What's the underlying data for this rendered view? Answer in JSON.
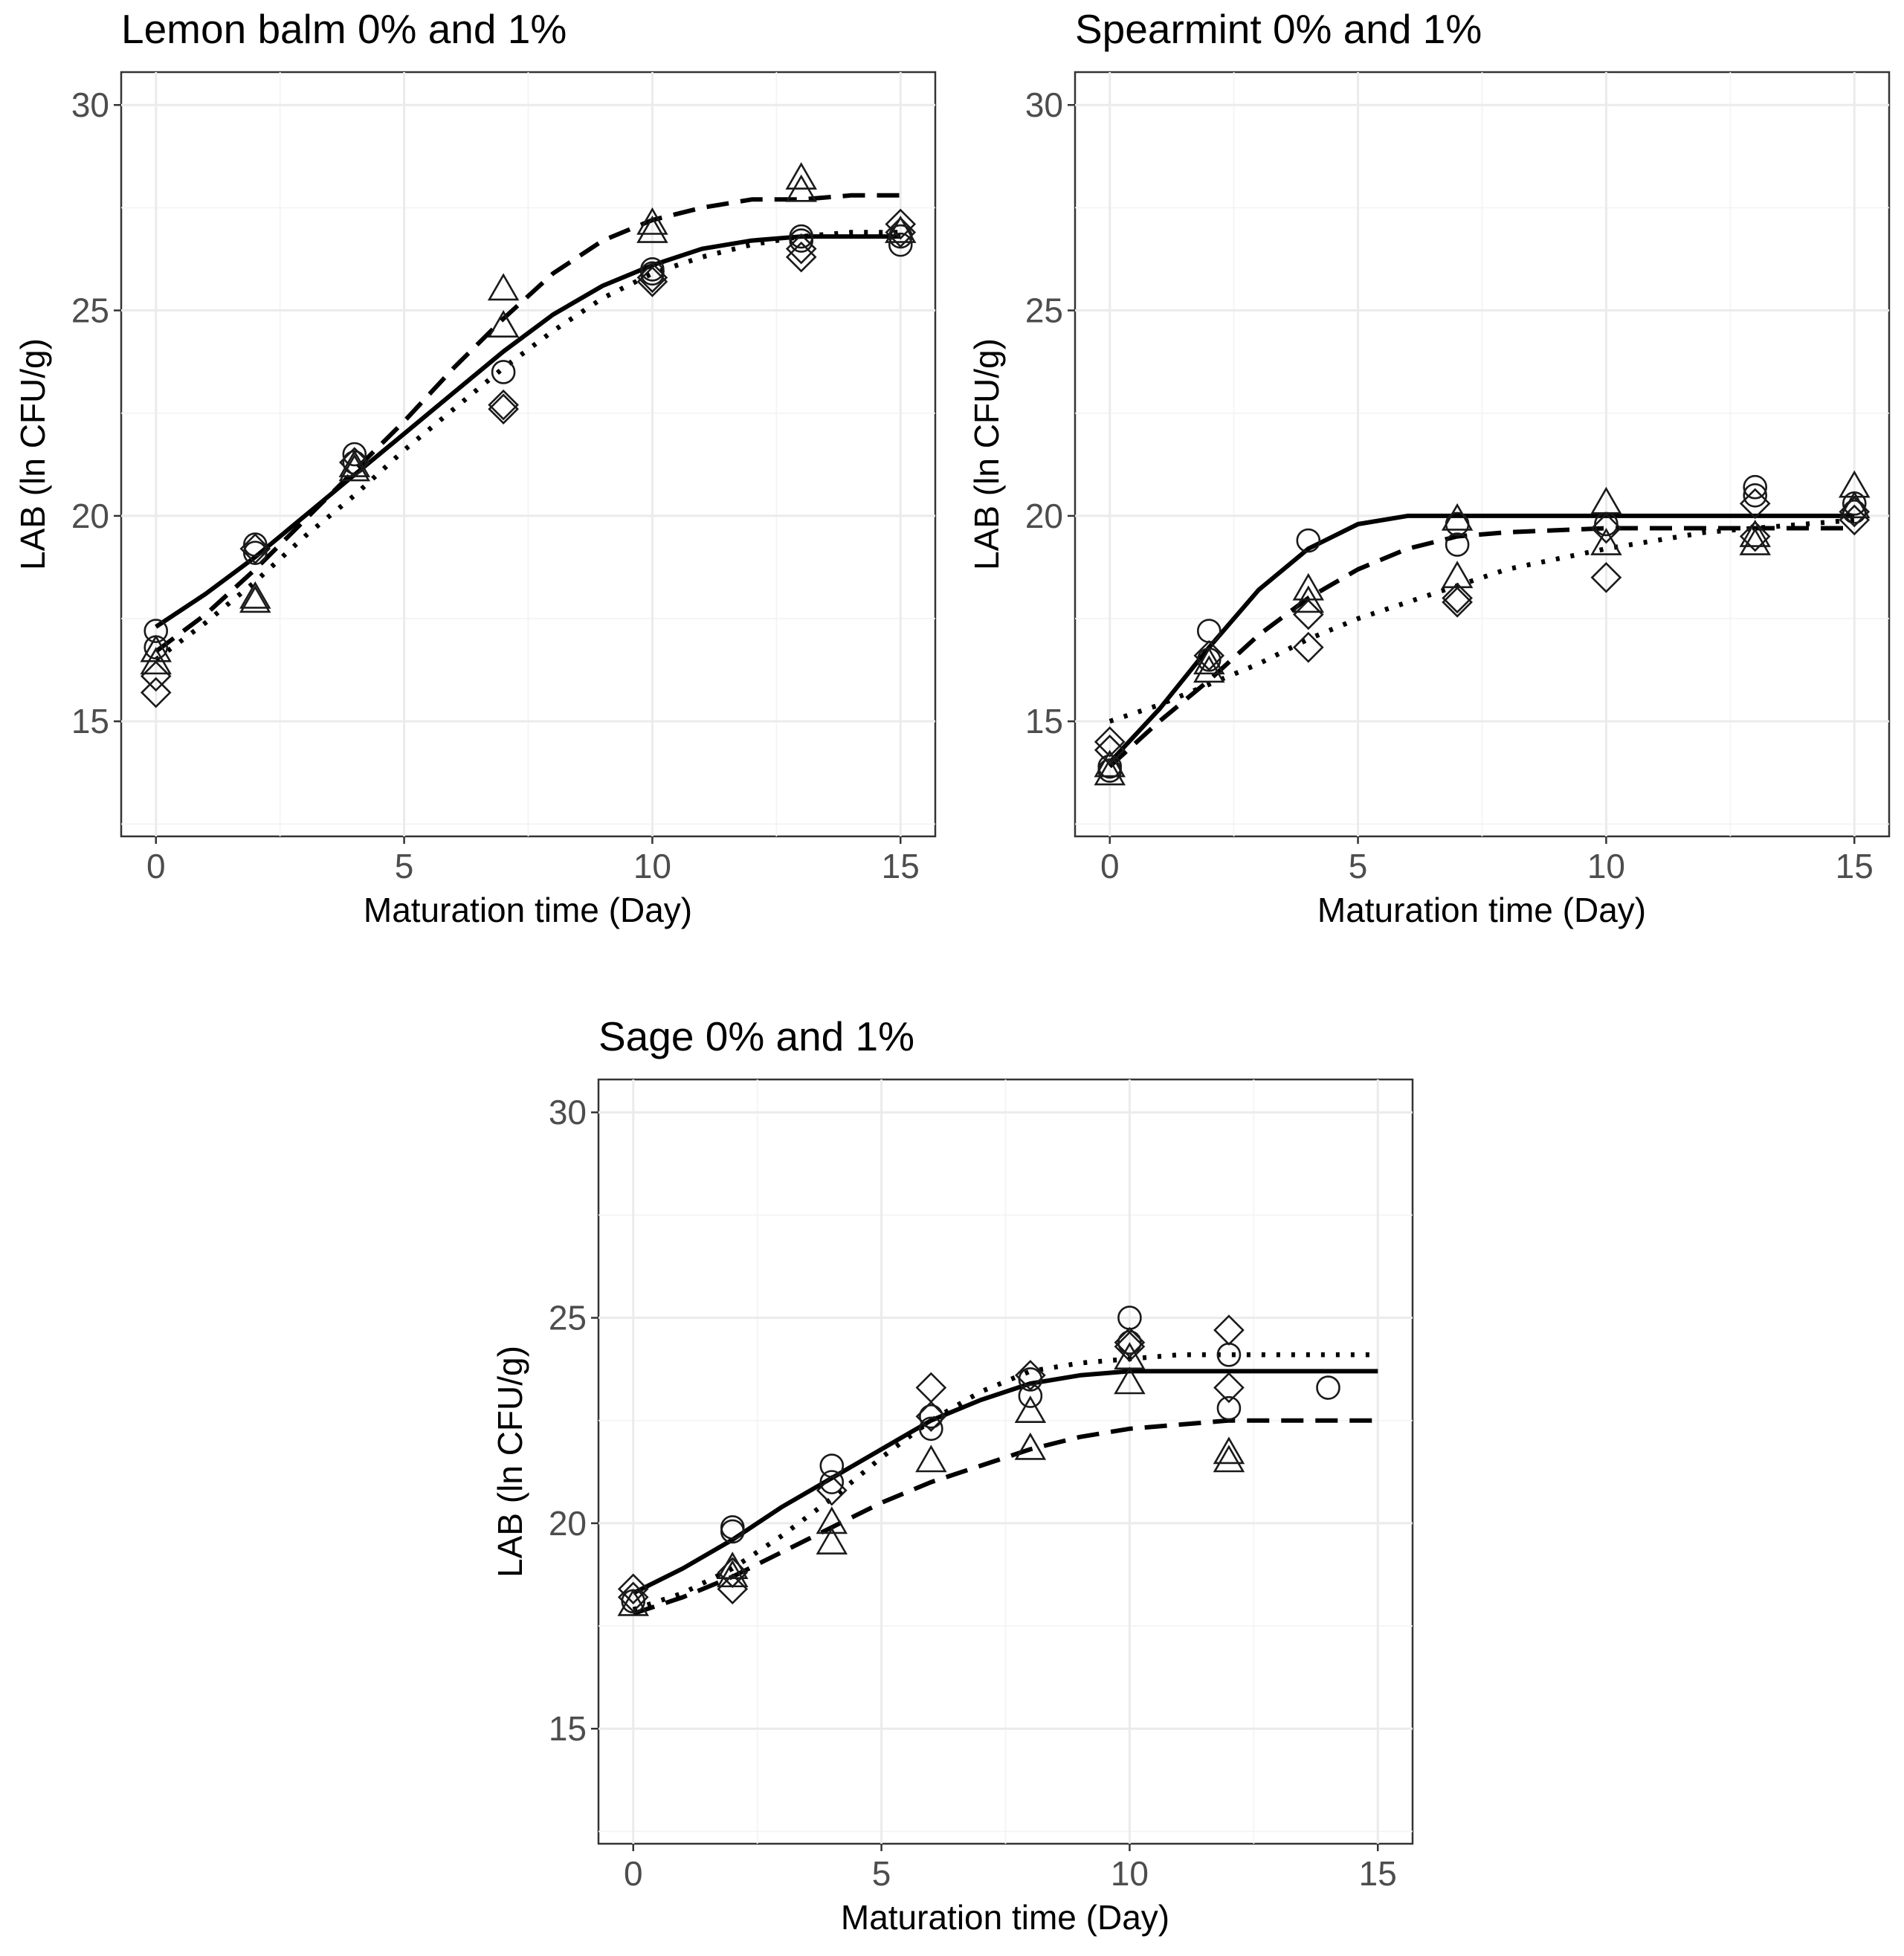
{
  "styles": {
    "line": "#000000",
    "grid": "#ebebeb",
    "border": "#333333",
    "tick_text": "#4d4d4d"
  },
  "chart_data": [
    {
      "type": "scatter",
      "title": "Lemon balm 0% and 1%",
      "xlabel": "Maturation time (Day)",
      "ylabel": "LAB (ln CFU/g)",
      "xlim": [
        -0.7,
        15.7
      ],
      "ylim": [
        12.2,
        30.8
      ],
      "xticks": [
        "0",
        "5",
        "10",
        "15"
      ],
      "yticks": [
        "15",
        "20",
        "25",
        "30"
      ],
      "xtick_values": [
        0,
        5,
        10,
        15
      ],
      "ytick_values": [
        15,
        20,
        25,
        30
      ],
      "series": [
        {
          "name": "circle",
          "marker": "circle",
          "points": [
            [
              0,
              17.2
            ],
            [
              0,
              16.8
            ],
            [
              2,
              19.3
            ],
            [
              2,
              19.1
            ],
            [
              4,
              21.5
            ],
            [
              4,
              21.3
            ],
            [
              7,
              23.5
            ],
            [
              10,
              26.0
            ],
            [
              10,
              25.9
            ],
            [
              13,
              26.8
            ],
            [
              13,
              26.7
            ],
            [
              15,
              26.8
            ],
            [
              15,
              26.6
            ]
          ]
        },
        {
          "name": "triangle",
          "marker": "triangle",
          "points": [
            [
              0,
              16.7
            ],
            [
              0,
              16.4
            ],
            [
              2,
              18.0
            ],
            [
              2,
              17.9
            ],
            [
              4,
              21.1
            ],
            [
              4,
              21.2
            ],
            [
              7,
              25.5
            ],
            [
              7,
              24.6
            ],
            [
              10,
              27.1
            ],
            [
              10,
              26.9
            ],
            [
              13,
              28.2
            ],
            [
              13,
              27.9
            ],
            [
              15,
              26.9
            ]
          ]
        },
        {
          "name": "diamond",
          "marker": "diamond",
          "points": [
            [
              0,
              16.1
            ],
            [
              0,
              15.7
            ],
            [
              2,
              19.2
            ],
            [
              4,
              21.3
            ],
            [
              7,
              22.7
            ],
            [
              7,
              22.6
            ],
            [
              10,
              25.8
            ],
            [
              10,
              25.7
            ],
            [
              13,
              26.5
            ],
            [
              13,
              26.3
            ],
            [
              15,
              27.1
            ],
            [
              15,
              26.9
            ]
          ]
        }
      ],
      "fits": [
        {
          "name": "solid",
          "dash": "solid",
          "x": [
            0,
            1,
            2,
            3,
            4,
            5,
            6,
            7,
            8,
            9,
            10,
            11,
            12,
            13,
            14,
            15
          ],
          "y": [
            17.3,
            18.1,
            19.0,
            20.0,
            21.0,
            22.0,
            23.0,
            24.0,
            24.9,
            25.6,
            26.1,
            26.5,
            26.7,
            26.8,
            26.8,
            26.8
          ]
        },
        {
          "name": "dashed",
          "dash": "dashed",
          "x": [
            0,
            1,
            2,
            3,
            4,
            5,
            6,
            7,
            8,
            9,
            10,
            11,
            12,
            13,
            14,
            15
          ],
          "y": [
            16.7,
            17.6,
            18.7,
            19.9,
            21.1,
            22.3,
            23.6,
            24.8,
            25.9,
            26.7,
            27.2,
            27.5,
            27.7,
            27.7,
            27.8,
            27.8
          ]
        },
        {
          "name": "dotted",
          "dash": "dotted",
          "x": [
            0,
            1,
            2,
            3,
            4,
            5,
            6,
            7,
            8,
            9,
            10,
            11,
            12,
            13,
            14,
            15
          ],
          "y": [
            16.5,
            17.4,
            18.4,
            19.5,
            20.5,
            21.6,
            22.6,
            23.6,
            24.5,
            25.3,
            25.9,
            26.3,
            26.6,
            26.8,
            26.9,
            26.9
          ]
        }
      ]
    },
    {
      "type": "scatter",
      "title": "Spearmint 0% and 1%",
      "xlabel": "Maturation time (Day)",
      "ylabel": "LAB (ln CFU/g)",
      "xlim": [
        -0.7,
        15.7
      ],
      "ylim": [
        12.2,
        30.8
      ],
      "xticks": [
        "0",
        "5",
        "10",
        "15"
      ],
      "yticks": [
        "15",
        "20",
        "25",
        "30"
      ],
      "xtick_values": [
        0,
        5,
        10,
        15
      ],
      "ytick_values": [
        15,
        20,
        25,
        30
      ],
      "series": [
        {
          "name": "circle",
          "marker": "circle",
          "points": [
            [
              0,
              13.8
            ],
            [
              0,
              13.9
            ],
            [
              2,
              17.2
            ],
            [
              2,
              16.5
            ],
            [
              4,
              19.4
            ],
            [
              7,
              19.3
            ],
            [
              7,
              19.8
            ],
            [
              10,
              19.8
            ],
            [
              13,
              20.7
            ],
            [
              13,
              20.5
            ],
            [
              15,
              20.3
            ],
            [
              15,
              20.1
            ]
          ]
        },
        {
          "name": "triangle",
          "marker": "triangle",
          "points": [
            [
              0,
              13.7
            ],
            [
              0,
              13.9
            ],
            [
              2,
              16.2
            ],
            [
              2,
              16.4
            ],
            [
              4,
              18.2
            ],
            [
              4,
              17.9
            ],
            [
              7,
              19.9
            ],
            [
              7,
              18.5
            ],
            [
              10,
              20.3
            ],
            [
              10,
              19.3
            ],
            [
              13,
              19.5
            ],
            [
              13,
              19.3
            ],
            [
              15,
              20.7
            ],
            [
              15,
              20.2
            ]
          ]
        },
        {
          "name": "diamond",
          "marker": "diamond",
          "points": [
            [
              0,
              14.5
            ],
            [
              0,
              14.3
            ],
            [
              2,
              16.6
            ],
            [
              4,
              16.8
            ],
            [
              4,
              17.6
            ],
            [
              7,
              18.0
            ],
            [
              7,
              17.9
            ],
            [
              10,
              18.5
            ],
            [
              10,
              19.7
            ],
            [
              13,
              20.3
            ],
            [
              13,
              19.5
            ],
            [
              15,
              19.9
            ],
            [
              15,
              20.1
            ]
          ]
        }
      ],
      "fits": [
        {
          "name": "solid",
          "dash": "solid",
          "x": [
            0,
            1,
            2,
            3,
            4,
            5,
            6,
            7,
            8,
            10,
            12,
            15
          ],
          "y": [
            14.0,
            15.3,
            16.8,
            18.2,
            19.2,
            19.8,
            20.0,
            20.0,
            20.0,
            20.0,
            20.0,
            20.0
          ]
        },
        {
          "name": "dashed",
          "dash": "dashed",
          "x": [
            0,
            1,
            2,
            3,
            4,
            5,
            6,
            7,
            8,
            10,
            12,
            15
          ],
          "y": [
            13.9,
            15.0,
            16.0,
            17.1,
            18.0,
            18.7,
            19.2,
            19.5,
            19.6,
            19.7,
            19.7,
            19.7
          ]
        },
        {
          "name": "dotted",
          "dash": "dotted",
          "x": [
            0,
            1,
            2,
            3,
            4,
            5,
            6,
            7,
            8,
            10,
            12,
            15
          ],
          "y": [
            15.0,
            15.4,
            15.9,
            16.4,
            17.0,
            17.5,
            17.9,
            18.3,
            18.7,
            19.2,
            19.6,
            19.9
          ]
        }
      ]
    },
    {
      "type": "scatter",
      "title": "Sage 0% and 1%",
      "xlabel": "Maturation time (Day)",
      "ylabel": "LAB (ln CFU/g)",
      "xlim": [
        -0.7,
        15.7
      ],
      "ylim": [
        12.2,
        30.8
      ],
      "xticks": [
        "0",
        "5",
        "10",
        "15"
      ],
      "yticks": [
        "15",
        "20",
        "25",
        "30"
      ],
      "xtick_values": [
        0,
        5,
        10,
        15
      ],
      "ytick_values": [
        15,
        20,
        25,
        30
      ],
      "series": [
        {
          "name": "circle",
          "marker": "circle",
          "points": [
            [
              0,
              18.1
            ],
            [
              2,
              19.9
            ],
            [
              2,
              19.8
            ],
            [
              4,
              21.4
            ],
            [
              4,
              21.0
            ],
            [
              6,
              22.6
            ],
            [
              6,
              22.3
            ],
            [
              8,
              23.5
            ],
            [
              8,
              23.1
            ],
            [
              10,
              25.0
            ],
            [
              10,
              24.4
            ],
            [
              12,
              24.1
            ],
            [
              12,
              22.8
            ],
            [
              14,
              23.3
            ]
          ]
        },
        {
          "name": "triangle",
          "marker": "triangle",
          "points": [
            [
              0,
              18.0
            ],
            [
              2,
              18.9
            ],
            [
              2,
              18.7
            ],
            [
              4,
              20.0
            ],
            [
              4,
              19.5
            ],
            [
              6,
              21.5
            ],
            [
              8,
              22.7
            ],
            [
              8,
              21.8
            ],
            [
              10,
              24.0
            ],
            [
              10,
              23.4
            ],
            [
              12,
              21.7
            ],
            [
              12,
              21.5
            ]
          ]
        },
        {
          "name": "diamond",
          "marker": "diamond",
          "points": [
            [
              0,
              18.4
            ],
            [
              0,
              18.2
            ],
            [
              2,
              18.4
            ],
            [
              2,
              18.8
            ],
            [
              4,
              20.8
            ],
            [
              6,
              23.3
            ],
            [
              6,
              22.6
            ],
            [
              8,
              23.6
            ],
            [
              10,
              24.3
            ],
            [
              10,
              24.4
            ],
            [
              12,
              24.7
            ],
            [
              12,
              23.3
            ]
          ]
        }
      ],
      "fits": [
        {
          "name": "solid",
          "dash": "solid",
          "x": [
            0,
            1,
            2,
            3,
            4,
            5,
            6,
            7,
            8,
            9,
            10,
            11,
            12,
            13,
            14,
            15
          ],
          "y": [
            18.3,
            18.9,
            19.6,
            20.4,
            21.1,
            21.8,
            22.5,
            23.0,
            23.4,
            23.6,
            23.7,
            23.7,
            23.7,
            23.7,
            23.7,
            23.7
          ]
        },
        {
          "name": "dashed",
          "dash": "dashed",
          "x": [
            0,
            1,
            2,
            3,
            4,
            5,
            6,
            7,
            8,
            9,
            10,
            11,
            12,
            13,
            14,
            15
          ],
          "y": [
            17.8,
            18.2,
            18.7,
            19.3,
            19.9,
            20.5,
            21.0,
            21.4,
            21.8,
            22.1,
            22.3,
            22.4,
            22.5,
            22.5,
            22.5,
            22.5
          ]
        },
        {
          "name": "dotted",
          "dash": "dotted",
          "x": [
            0,
            1,
            2,
            3,
            4,
            5,
            6,
            7,
            8,
            9,
            10,
            11,
            12,
            13,
            14,
            15
          ],
          "y": [
            17.9,
            18.3,
            18.9,
            19.7,
            20.6,
            21.6,
            22.5,
            23.2,
            23.7,
            23.9,
            24.0,
            24.1,
            24.1,
            24.1,
            24.1,
            24.1
          ]
        }
      ]
    }
  ]
}
